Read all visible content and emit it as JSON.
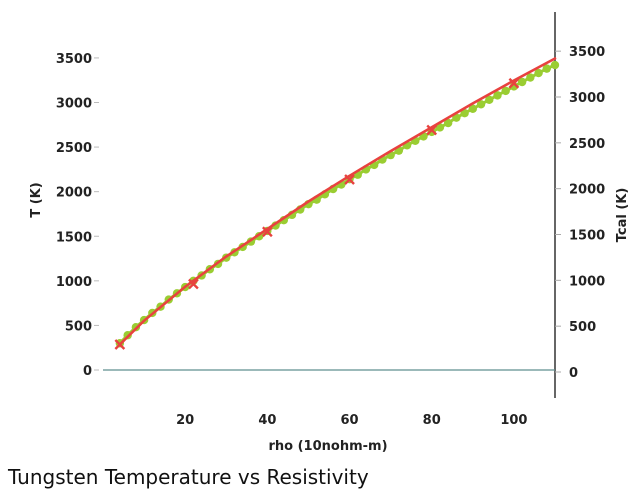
{
  "chart_data": {
    "type": "line",
    "title": "Tungsten Temperature vs Resistivity",
    "xlabel": "rho (10nohm-m)",
    "ylabel": "T (K)",
    "y2label": "Tcal (K)",
    "xlim": [
      0,
      110
    ],
    "ylim": [
      0,
      3600
    ],
    "y2lim": [
      0,
      3600
    ],
    "x_ticks": [
      "20",
      "40",
      "60",
      "80",
      "100"
    ],
    "y_ticks": [
      "0",
      "500",
      "1000",
      "1500",
      "2000",
      "2500",
      "3000",
      "3500"
    ],
    "y2_ticks": [
      "0",
      "500",
      "1000",
      "1500",
      "2000",
      "2500",
      "3000",
      "3500"
    ],
    "colors": {
      "T": "#9acd32",
      "Tcal": "#e8423f"
    },
    "series": [
      {
        "marker": "circle",
        "axis": "left",
        "x": [
          4.1,
          6.0,
          8.0,
          10.0,
          12.0,
          14.0,
          16.0,
          18.0,
          20.0,
          22.0,
          24.0,
          26.0,
          28.0,
          30.0,
          32.0,
          34.0,
          36.0,
          38.0,
          40.0,
          42.0,
          44.0,
          46.0,
          48.0,
          50.0,
          52.0,
          54.0,
          56.0,
          58.0,
          60.0,
          62.0,
          64.0,
          66.0,
          68.0,
          70.0,
          72.0,
          74.0,
          76.0,
          78.0,
          80.0,
          82.0,
          84.0,
          86.0,
          88.0,
          90.0,
          92.0,
          94.0,
          96.0,
          98.0,
          100.0,
          102.0,
          104.0,
          106.0,
          108.0,
          110.0
        ],
        "values": [
          300,
          390,
          480,
          560,
          640,
          710,
          790,
          860,
          930,
          1000,
          1060,
          1130,
          1190,
          1260,
          1320,
          1380,
          1440,
          1500,
          1560,
          1620,
          1680,
          1740,
          1800,
          1860,
          1910,
          1970,
          2030,
          2080,
          2140,
          2190,
          2250,
          2300,
          2360,
          2410,
          2460,
          2520,
          2570,
          2620,
          2670,
          2720,
          2770,
          2830,
          2880,
          2930,
          2980,
          3030,
          3080,
          3130,
          3180,
          3230,
          3280,
          3330,
          3380,
          3420
        ]
      },
      {
        "marker": "x",
        "axis": "right",
        "x": [
          4.1,
          22.0,
          40.0,
          60.0,
          80.0,
          100.0
        ],
        "values": [
          300,
          960,
          1530,
          2100,
          2640,
          3150
        ],
        "line_x": [
          4.1,
          10.0,
          20.0,
          30.0,
          40.0,
          50.0,
          60.0,
          70.0,
          80.0,
          90.0,
          100.0,
          110.0
        ],
        "line_values": [
          300,
          560,
          930,
          1260,
          1560,
          1860,
          2140,
          2410,
          2670,
          2930,
          3180,
          3420
        ]
      }
    ],
    "grid": false
  }
}
